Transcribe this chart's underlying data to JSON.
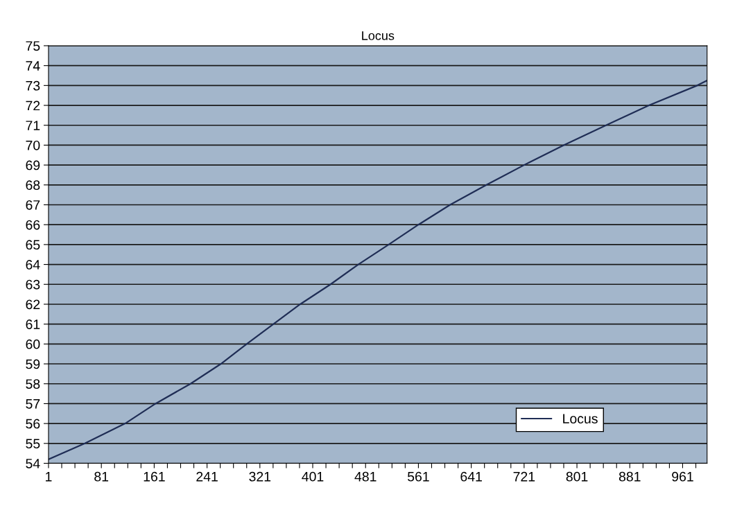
{
  "chart_data": {
    "type": "line",
    "title": "Locus",
    "series": [
      {
        "name": "Locus",
        "color": "#1f2d55",
        "x": [
          1,
          56,
          117,
          163,
          216,
          262,
          301,
          382,
          428,
          470,
          516,
          561,
          609,
          664,
          721,
          781,
          845,
          910,
          983,
          998
        ],
        "values": [
          54.2,
          55,
          56,
          57,
          58,
          59,
          60,
          62,
          63,
          64,
          65,
          66,
          67,
          68,
          69,
          70,
          71,
          72,
          73,
          73.25
        ]
      }
    ],
    "xlim": [
      1,
      998
    ],
    "ylim": [
      54,
      75
    ],
    "xticks": [
      1,
      {
        "value": 21,
        "label": null
      },
      {
        "value": 41,
        "label": null
      },
      {
        "value": 61,
        "label": null
      },
      81,
      {
        "value": 101,
        "label": null
      },
      {
        "value": 121,
        "label": null
      },
      {
        "value": 141,
        "label": null
      },
      161,
      {
        "value": 181,
        "label": null
      },
      {
        "value": 201,
        "label": null
      },
      {
        "value": 221,
        "label": null
      },
      241,
      {
        "value": 261,
        "label": null
      },
      {
        "value": 281,
        "label": null
      },
      {
        "value": 301,
        "label": null
      },
      321,
      {
        "value": 341,
        "label": null
      },
      {
        "value": 361,
        "label": null
      },
      {
        "value": 381,
        "label": null
      },
      401,
      {
        "value": 421,
        "label": null
      },
      {
        "value": 441,
        "label": null
      },
      {
        "value": 461,
        "label": null
      },
      481,
      {
        "value": 501,
        "label": null
      },
      {
        "value": 521,
        "label": null
      },
      {
        "value": 541,
        "label": null
      },
      561,
      {
        "value": 581,
        "label": null
      },
      {
        "value": 601,
        "label": null
      },
      {
        "value": 621,
        "label": null
      },
      641,
      {
        "value": 661,
        "label": null
      },
      {
        "value": 681,
        "label": null
      },
      {
        "value": 701,
        "label": null
      },
      721,
      {
        "value": 741,
        "label": null
      },
      {
        "value": 761,
        "label": null
      },
      {
        "value": 781,
        "label": null
      },
      801,
      {
        "value": 821,
        "label": null
      },
      {
        "value": 841,
        "label": null
      },
      {
        "value": 861,
        "label": null
      },
      881,
      {
        "value": 901,
        "label": null
      },
      {
        "value": 921,
        "label": null
      },
      {
        "value": 941,
        "label": null
      },
      961,
      {
        "value": 981,
        "label": null
      }
    ],
    "yticks": [
      54,
      55,
      56,
      57,
      58,
      59,
      60,
      61,
      62,
      63,
      64,
      65,
      66,
      67,
      68,
      69,
      70,
      71,
      72,
      73,
      74,
      75
    ],
    "grid": "y",
    "legend": "bottom right",
    "marker": "none",
    "line_style": "solid"
  }
}
